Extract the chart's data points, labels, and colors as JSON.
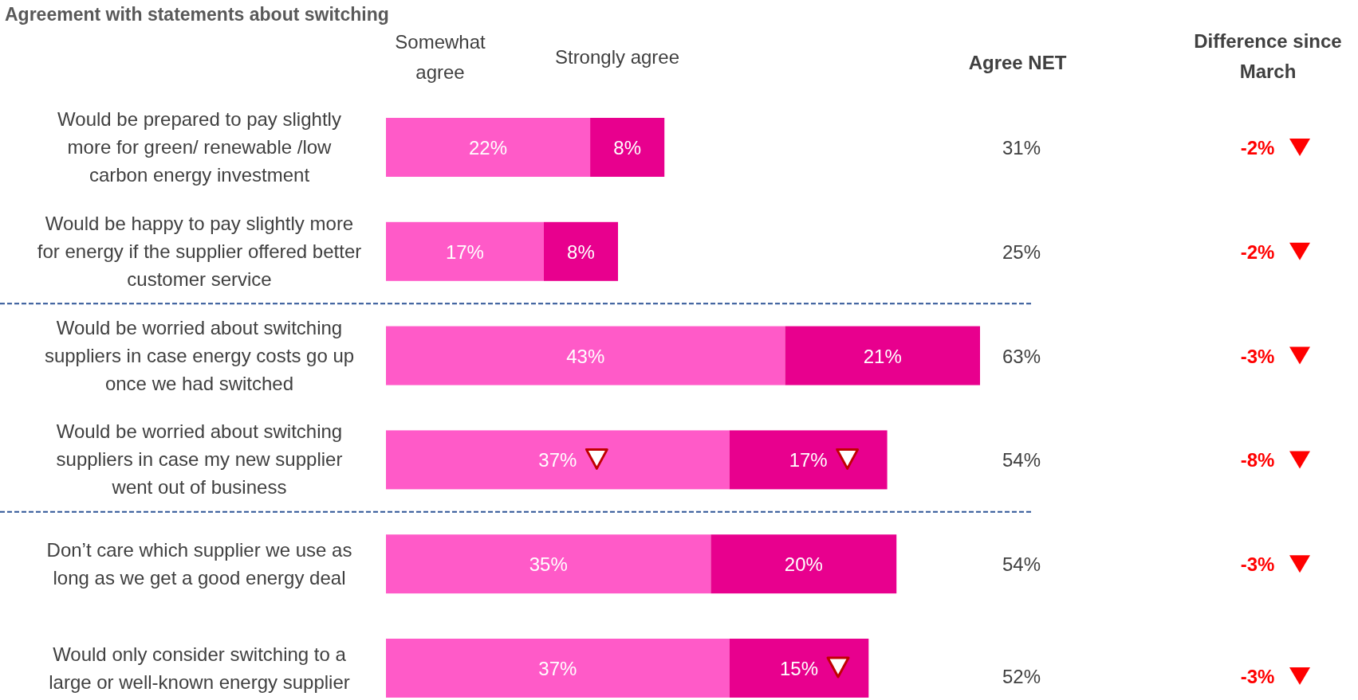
{
  "chart_data": {
    "type": "bar",
    "orientation": "horizontal",
    "stacked": true,
    "title": "Agreement with statements about switching",
    "categories": [
      "Would be prepared to pay slightly more for green/ renewable /low carbon energy investment",
      "Would be happy to pay slightly more for energy if the supplier offered better customer service",
      "Would be worried about switching suppliers in case energy costs go up once we had switched",
      "Would be worried about switching suppliers in case my new supplier went out of business",
      "Don’t care which supplier we use as long as we get a good energy deal",
      "Would only consider switching to a large or well-known energy supplier"
    ],
    "series": [
      {
        "name": "Somewhat agree",
        "color": "#ff5ac8",
        "values": [
          22,
          17,
          43,
          37,
          35,
          37
        ],
        "value_labels": [
          "22%",
          "17%",
          "43%",
          "37%",
          "35%",
          "37%"
        ]
      },
      {
        "name": "Strongly agree",
        "color": "#e8008e",
        "values": [
          8,
          8,
          21,
          17,
          20,
          15
        ],
        "value_labels": [
          "8%",
          "8%",
          "21%",
          "17%",
          "20%",
          "15%"
        ]
      }
    ],
    "annotations": [
      "Agree NET",
      "Difference since March",
      "31%",
      "25%",
      "63%",
      "54%",
      "54%",
      "52%",
      "-2%",
      "-2%",
      "-3%",
      "-8%",
      "-3%",
      "-3%"
    ],
    "legend": "top"
  }
}
